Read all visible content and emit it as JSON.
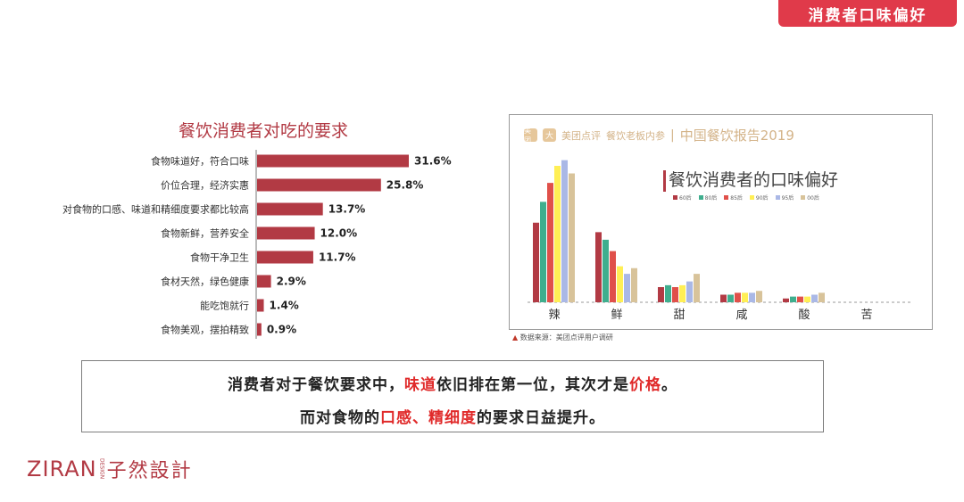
{
  "banner": {
    "title": "消费者口味偏好"
  },
  "left_chart": {
    "title": "餐饮消费者对吃的要求"
  },
  "right_panel": {
    "logo1": "美团",
    "logo2": "大",
    "brand1": "美团点评",
    "brand2": "餐饮老板内参",
    "separator": "|",
    "report": "中国餐饮报告2019",
    "title": "餐饮消费者的口味偏好",
    "legend": [
      "60后",
      "80后",
      "85后",
      "90后",
      "95后",
      "00后"
    ],
    "source_mark": "▲",
    "source": "数据来源：美团点评用户调研"
  },
  "colors": {
    "banner": "#e03a4a",
    "bar": "#b23a44",
    "highlight": "#e02a2a",
    "series": [
      "#b23a44",
      "#3fae8e",
      "#e0504a",
      "#ffef55",
      "#aab8e6",
      "#d8c39a"
    ]
  },
  "chart_data": [
    {
      "type": "bar",
      "orientation": "horizontal",
      "title": "餐饮消费者对吃的要求",
      "categories": [
        "食物味道好，符合口味",
        "价位合理，经济实惠",
        "对食物的口感、味道和精细度要求都比较高",
        "食物新鲜，营养安全",
        "食物干净卫生",
        "食材天然，绿色健康",
        "能吃饱就行",
        "食物美观，摆拍精致"
      ],
      "values": [
        31.6,
        25.8,
        13.7,
        12.0,
        11.7,
        2.9,
        1.4,
        0.9
      ],
      "value_labels": [
        "31.6%",
        "25.8%",
        "13.7%",
        "12.0%",
        "11.7%",
        "2.9%",
        "1.4%",
        "0.9%"
      ],
      "xlim": [
        0,
        35
      ]
    },
    {
      "type": "bar",
      "title": "餐饮消费者的口味偏好",
      "categories": [
        "辣",
        "鲜",
        "甜",
        "咸",
        "酸",
        "苦"
      ],
      "series": [
        {
          "name": "60后",
          "values": [
            42,
            37,
            8,
            4,
            2,
            0
          ]
        },
        {
          "name": "80后",
          "values": [
            53,
            33,
            9,
            4,
            3,
            0
          ]
        },
        {
          "name": "85后",
          "values": [
            63,
            27,
            8,
            5,
            3,
            0
          ]
        },
        {
          "name": "90后",
          "values": [
            72,
            19,
            9,
            5,
            3,
            0
          ]
        },
        {
          "name": "95后",
          "values": [
            75,
            15,
            11,
            5,
            4,
            0
          ]
        },
        {
          "name": "00后",
          "values": [
            68,
            18,
            15,
            6,
            5,
            0
          ]
        }
      ],
      "ylim": [
        0,
        80
      ],
      "grid": false,
      "legend": "top"
    }
  ],
  "conclusion": {
    "l1a": "消费者对于餐饮要求中，",
    "l1b": "味道",
    "l1c": "依旧排在第一位，其次才是",
    "l1d": "价格",
    "l1e": "。",
    "l2a": "而对食物的",
    "l2b": "口感、精细度",
    "l2c": "的要求日益提升。"
  },
  "brand": {
    "latin": "ZIRAN",
    "design": "DESIGN",
    "cjk": "子然設計"
  }
}
